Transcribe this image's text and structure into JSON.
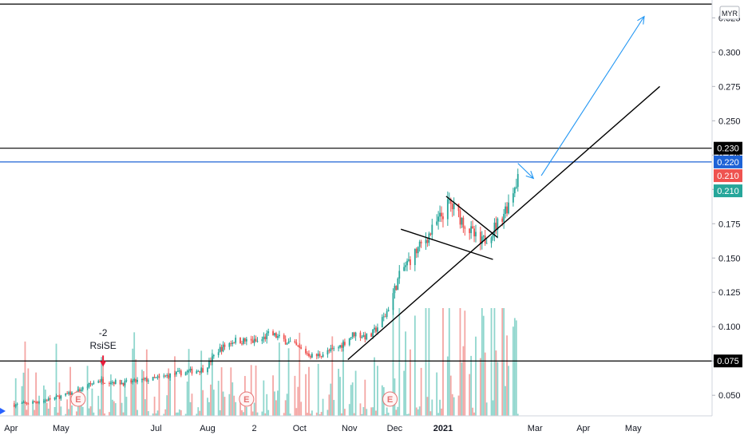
{
  "currency": "MYR",
  "chart_data": {
    "type": "candlestick",
    "ylim": [
      0.035,
      0.338
    ],
    "y_ticks": [
      "0.050",
      "0.075",
      "0.100",
      "0.125",
      "0.150",
      "0.175",
      "0.200",
      "0.225",
      "0.250",
      "0.275",
      "0.300",
      "0.325"
    ],
    "x_ticks": [
      "Apr",
      "May",
      "Jul",
      "Aug",
      "2",
      "Oct",
      "Nov",
      "Dec",
      "2021",
      "Mar",
      "Apr",
      "May"
    ],
    "price_path": [
      [
        "2020-04-01",
        0.043
      ],
      [
        "2020-04-20",
        0.046
      ],
      [
        "2020-05-10",
        0.052
      ],
      [
        "2020-05-25",
        0.061
      ],
      [
        "2020-06-10",
        0.059
      ],
      [
        "2020-06-30",
        0.062
      ],
      [
        "2020-07-15",
        0.066
      ],
      [
        "2020-08-01",
        0.069
      ],
      [
        "2020-08-10",
        0.083
      ],
      [
        "2020-08-20",
        0.09
      ],
      [
        "2020-09-05",
        0.089
      ],
      [
        "2020-09-12",
        0.095
      ],
      [
        "2020-09-25",
        0.088
      ],
      [
        "2020-10-10",
        0.078
      ],
      [
        "2020-10-25",
        0.084
      ],
      [
        "2020-11-05",
        0.095
      ],
      [
        "2020-11-15",
        0.092
      ],
      [
        "2020-11-25",
        0.108
      ],
      [
        "2020-12-05",
        0.14
      ],
      [
        "2020-12-15",
        0.155
      ],
      [
        "2020-12-25",
        0.17
      ],
      [
        "2021-01-05",
        0.19
      ],
      [
        "2021-01-15",
        0.175
      ],
      [
        "2021-01-25",
        0.16
      ],
      [
        "2021-02-05",
        0.175
      ],
      [
        "2021-02-12",
        0.19
      ],
      [
        "2021-02-18",
        0.21
      ]
    ],
    "horizontal_levels": [
      {
        "value": 0.335,
        "color": "#000000"
      },
      {
        "value": 0.23,
        "color": "#000000",
        "label": "0.230"
      },
      {
        "value": 0.22,
        "color": "#1e63d6",
        "label": "0.220"
      },
      {
        "value": 0.075,
        "color": "#000000",
        "label": "0.075"
      }
    ],
    "price_labels": [
      {
        "value": 0.21,
        "label": "0.210",
        "color": "#ef5350"
      },
      {
        "value": 0.21,
        "label": "0.210",
        "color": "#26a69a"
      }
    ],
    "trendlines": [
      {
        "from": [
          "2020-11-01",
          0.076
        ],
        "to": [
          "2021-05-20",
          0.275
        ],
        "color": "#000000"
      },
      {
        "from": [
          "2020-12-05",
          0.171
        ],
        "to": [
          "2021-02-02",
          0.149
        ],
        "color": "#000000"
      },
      {
        "from": [
          "2021-01-03",
          0.195
        ],
        "to": [
          "2021-02-05",
          0.165
        ],
        "color": "#000000"
      }
    ],
    "arrows": [
      {
        "from": [
          "2021-02-18",
          0.219
        ],
        "to": [
          "2021-02-28",
          0.208
        ],
        "color": "#2196f3"
      },
      {
        "from": [
          "2021-03-05",
          0.21
        ],
        "to": [
          "2021-05-10",
          0.326
        ],
        "color": "#2196f3"
      }
    ],
    "signal": {
      "date": "2020-05-28",
      "value": 0.072,
      "line1": "-2",
      "line2": "RsiSE"
    },
    "earnings_marker": "E"
  }
}
